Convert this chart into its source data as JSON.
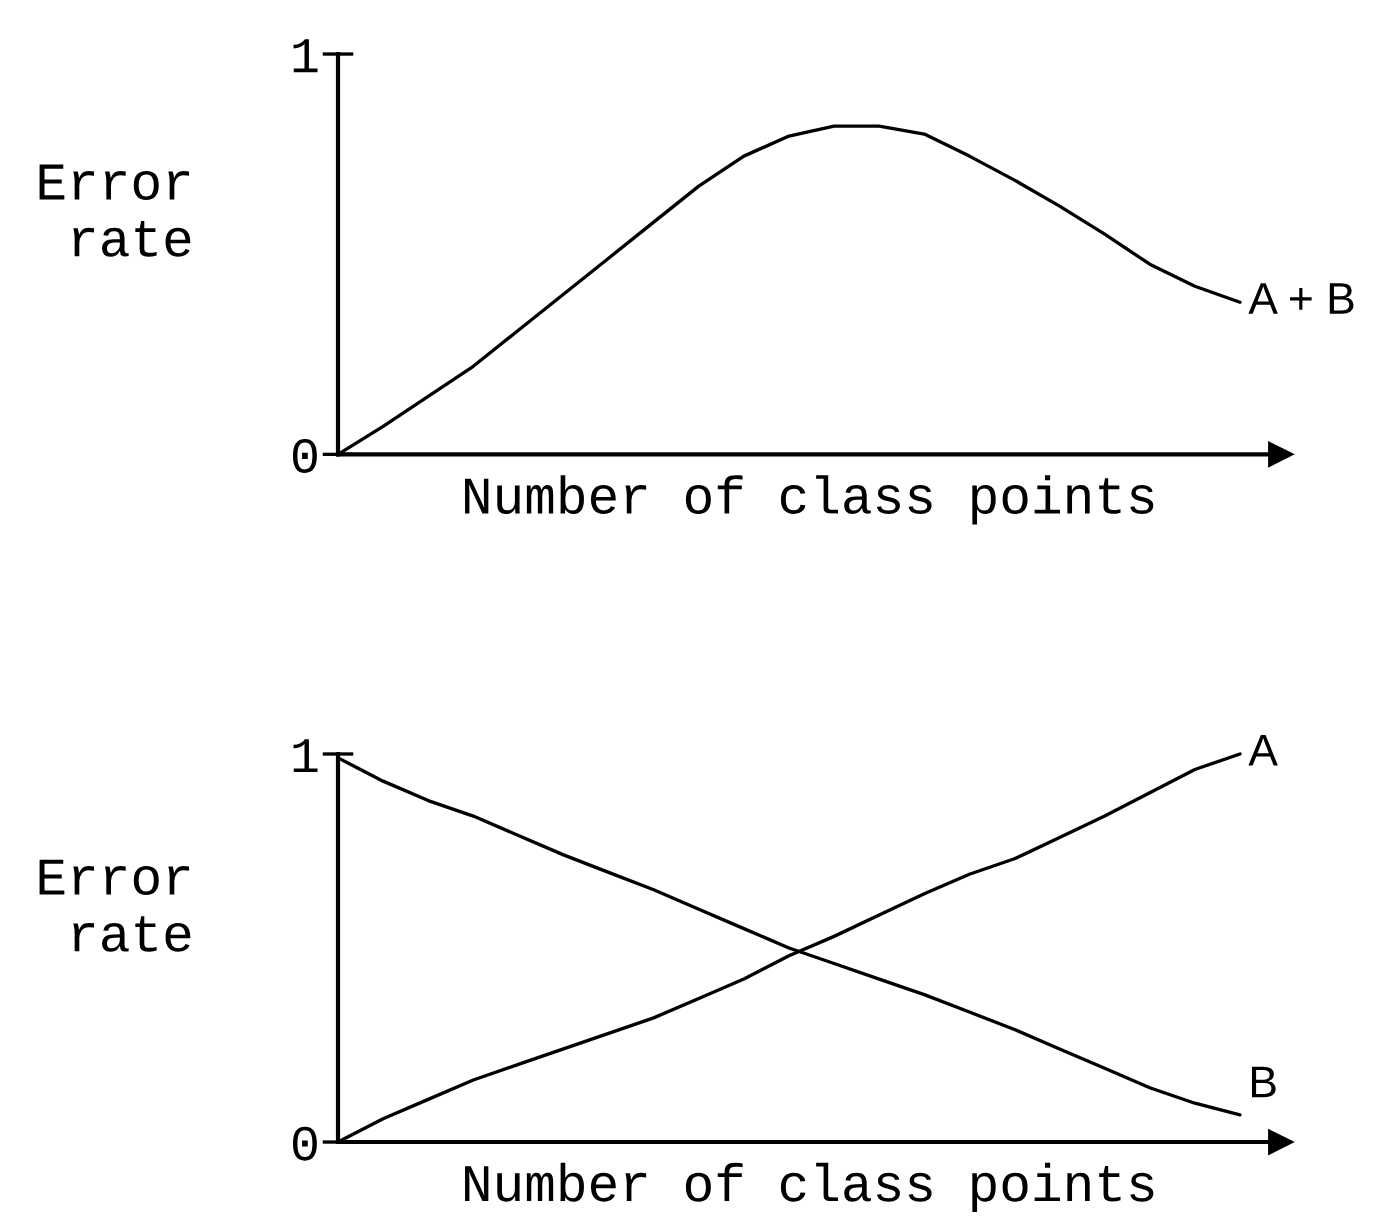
{
  "chart_data": [
    {
      "type": "line",
      "xlabel": "Number of class points",
      "ylabel": "Error\nrate",
      "categories": [
        null,
        null,
        null,
        null,
        null,
        null,
        null,
        null,
        null,
        null,
        null,
        null,
        null,
        null,
        null,
        null,
        null,
        null,
        null,
        null,
        null
      ],
      "ylim": [
        0,
        1
      ],
      "yticks": [
        0,
        1
      ],
      "series": [
        {
          "name": "A + B",
          "color": "#000000",
          "values": [
            0,
            0.07,
            0.145,
            0.22,
            0.31,
            0.4,
            0.49,
            0.58,
            0.67,
            0.745,
            0.795,
            0.82,
            0.82,
            0.8,
            0.745,
            0.685,
            0.62,
            0.55,
            0.475,
            0.42,
            0.38
          ]
        }
      ]
    },
    {
      "type": "line",
      "xlabel": "Number of class points",
      "ylabel": "Error\nrate",
      "categories": [
        null,
        null,
        null,
        null,
        null,
        null,
        null,
        null,
        null,
        null,
        null,
        null,
        null,
        null,
        null,
        null,
        null,
        null,
        null,
        null,
        null
      ],
      "ylim": [
        0,
        1
      ],
      "yticks": [
        0,
        1
      ],
      "series": [
        {
          "name": "A",
          "color": "#000000",
          "values": [
            0,
            0.06,
            0.11,
            0.16,
            0.2,
            0.24,
            0.28,
            0.32,
            0.37,
            0.42,
            0.48,
            0.53,
            0.585,
            0.64,
            0.69,
            0.73,
            0.785,
            0.84,
            0.9,
            0.96,
            1.0
          ]
        },
        {
          "name": "B",
          "color": "#000000",
          "values": [
            0.99,
            0.93,
            0.88,
            0.84,
            0.79,
            0.74,
            0.695,
            0.65,
            0.6,
            0.55,
            0.5,
            0.46,
            0.42,
            0.38,
            0.335,
            0.29,
            0.24,
            0.19,
            0.14,
            0.1,
            0.07
          ]
        }
      ]
    }
  ]
}
